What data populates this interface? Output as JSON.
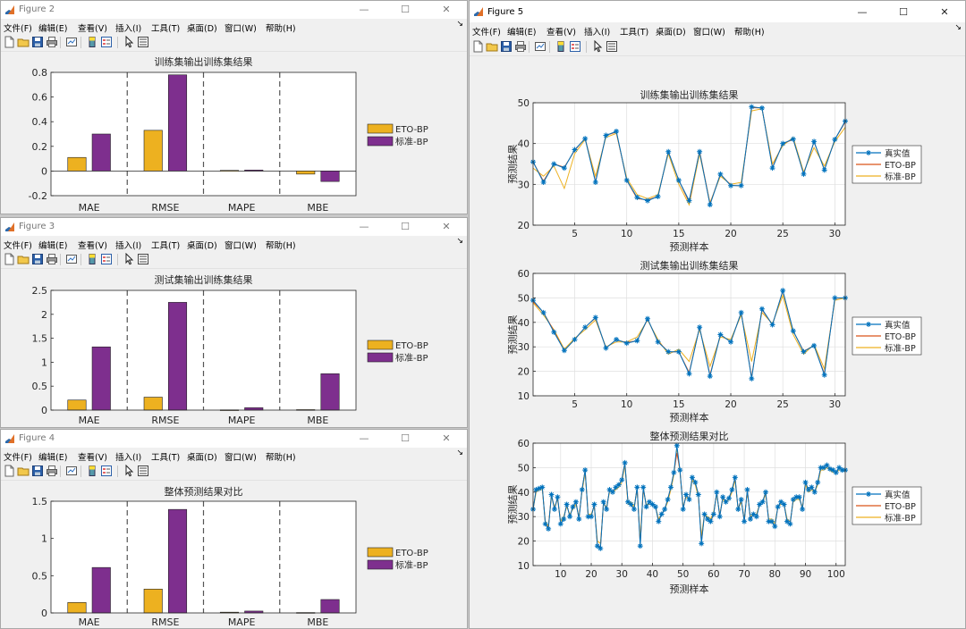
{
  "menu": [
    "文件(F)",
    "编辑(E)",
    "查看(V)",
    "插入(I)",
    "工具(T)",
    "桌面(D)",
    "窗口(W)",
    "帮助(H)"
  ],
  "window_buttons": {
    "minimize": "—",
    "maximize": "☐",
    "close": "✕"
  },
  "colors": {
    "eto": "#edb120",
    "std": "#7e2f8e",
    "true_line": "#0072bd",
    "eto_line": "#d95319",
    "std_line": "#edb120"
  },
  "figures": [
    {
      "title": "Figure 2"
    },
    {
      "title": "Figure 3"
    },
    {
      "title": "Figure 4"
    },
    {
      "title": "Figure 5"
    }
  ],
  "chart_data": [
    {
      "type": "bar",
      "title": "训练集输出训练集结果",
      "categories": [
        "MAE",
        "RMSE",
        "MAPE",
        "MBE"
      ],
      "ylim": [
        -0.2,
        0.8
      ],
      "yticks": [
        "-0.2",
        "0",
        "0.2",
        "0.4",
        "0.6",
        "0.8"
      ],
      "series": [
        {
          "name": "ETO-BP",
          "values": [
            0.11,
            0.33,
            0.005,
            -0.025
          ]
        },
        {
          "name": "标准-BP",
          "values": [
            0.3,
            0.78,
            0.008,
            -0.085
          ]
        }
      ]
    },
    {
      "type": "bar",
      "title": "测试集输出训练集结果",
      "categories": [
        "MAE",
        "RMSE",
        "MAPE",
        "MBE"
      ],
      "ylim": [
        0,
        2.5
      ],
      "yticks": [
        "0",
        "0.5",
        "1",
        "1.5",
        "2",
        "2.5"
      ],
      "series": [
        {
          "name": "ETO-BP",
          "values": [
            0.21,
            0.27,
            0.005,
            0.01
          ]
        },
        {
          "name": "标准-BP",
          "values": [
            1.32,
            2.25,
            0.05,
            0.76
          ]
        }
      ]
    },
    {
      "type": "bar",
      "title": "整体预测结果对比",
      "categories": [
        "MAE",
        "RMSE",
        "MAPE",
        "MBE"
      ],
      "ylim": [
        0,
        1.5
      ],
      "yticks": [
        "0",
        "0.5",
        "1",
        "1.5"
      ],
      "series": [
        {
          "name": "ETO-BP",
          "values": [
            0.14,
            0.32,
            0.01,
            0.005
          ]
        },
        {
          "name": "标准-BP",
          "values": [
            0.61,
            1.39,
            0.025,
            0.18
          ]
        }
      ]
    },
    {
      "type": "line",
      "title": "训练集输出训练集结果",
      "xlabel": "预测样本",
      "ylabel": "预测结果",
      "xlim": [
        1,
        31
      ],
      "ylim": [
        20,
        50
      ],
      "xticks": [
        5,
        10,
        15,
        20,
        25,
        30
      ],
      "yticks": [
        20,
        30,
        40,
        50
      ],
      "series": [
        {
          "name": "真实值",
          "values": [
            35.5,
            30.5,
            35,
            34,
            38.5,
            41.2,
            30.5,
            42,
            43,
            31,
            26.8,
            26,
            27,
            38,
            31,
            26,
            38,
            25,
            32.5,
            29.7,
            29.7,
            49,
            48.7,
            34,
            40,
            41.1,
            32.5,
            40.5,
            33.5,
            41,
            45.5
          ]
        },
        {
          "name": "ETO-BP",
          "values": [
            35.5,
            30.8,
            35,
            34.2,
            38.3,
            41.3,
            30.7,
            42,
            42.8,
            31,
            26.5,
            26.2,
            27,
            38,
            31,
            25.6,
            38.2,
            25.2,
            32.5,
            29.8,
            29.6,
            48.8,
            48.7,
            34.2,
            40,
            41,
            32.6,
            40.4,
            33.6,
            41,
            45.3
          ]
        },
        {
          "name": "标准-BP",
          "values": [
            34,
            32,
            34.5,
            29,
            37.5,
            41,
            32,
            41.5,
            42.5,
            31.5,
            27.5,
            26.5,
            27.5,
            37.5,
            30,
            25,
            37.5,
            25.5,
            32,
            30,
            30.5,
            48,
            48.5,
            35,
            39.5,
            41.5,
            33,
            39,
            34.5,
            40.5,
            44
          ]
        }
      ]
    },
    {
      "type": "line",
      "title": "测试集输出训练集结果",
      "xlabel": "预测样本",
      "ylabel": "预测结果",
      "xlim": [
        1,
        31
      ],
      "ylim": [
        10,
        60
      ],
      "xticks": [
        5,
        10,
        15,
        20,
        25,
        30
      ],
      "yticks": [
        10,
        20,
        30,
        40,
        50,
        60
      ],
      "series": [
        {
          "name": "真实值",
          "values": [
            49,
            44,
            36,
            28.5,
            33,
            38,
            42,
            29.5,
            33,
            31.5,
            32.5,
            41.5,
            32,
            28,
            28,
            19,
            38,
            18,
            35,
            32,
            44,
            17,
            45.5,
            39,
            53,
            36.5,
            28,
            30.5,
            18.5,
            50,
            50
          ]
        },
        {
          "name": "ETO-BP",
          "values": [
            48.5,
            44,
            36.5,
            28.5,
            33,
            38,
            41.8,
            29.6,
            32.8,
            31.8,
            32.5,
            41.3,
            32.2,
            28,
            28,
            19.5,
            38,
            18.5,
            35,
            32,
            44,
            17.5,
            45.2,
            39,
            52.8,
            36.5,
            28.2,
            30.5,
            19,
            49.8,
            50
          ]
        },
        {
          "name": "标准-BP",
          "values": [
            48,
            43,
            37,
            29,
            33.5,
            37,
            41,
            30,
            32,
            32,
            34,
            41,
            33,
            27,
            29,
            24,
            37,
            22,
            34,
            33,
            43,
            24,
            44,
            39.5,
            51,
            35,
            27,
            31,
            21,
            49,
            50
          ]
        }
      ]
    },
    {
      "type": "line",
      "title": "整体预测结果对比",
      "xlabel": "预测样本",
      "ylabel": "预测结果",
      "xlim": [
        1,
        103
      ],
      "ylim": [
        10,
        60
      ],
      "xticks": [
        10,
        20,
        30,
        40,
        50,
        60,
        70,
        80,
        90,
        100
      ],
      "yticks": [
        10,
        20,
        30,
        40,
        50,
        60
      ],
      "series": [
        {
          "name": "真实值",
          "values": [
            33,
            41,
            41.5,
            42,
            27,
            25,
            39,
            33,
            38,
            27,
            29,
            35,
            30,
            34,
            36,
            29,
            41,
            49,
            30,
            30,
            35,
            18,
            17,
            36,
            33,
            41,
            40,
            42,
            43,
            45,
            52,
            36,
            35,
            33,
            42,
            18,
            42,
            34,
            36,
            35,
            34,
            28,
            31,
            33,
            37,
            42,
            48,
            59,
            49,
            33,
            39,
            37,
            46,
            44,
            39,
            19,
            31,
            29,
            28,
            31,
            40,
            30,
            38,
            36,
            37.5,
            41,
            46,
            33,
            37,
            28,
            41,
            29,
            31,
            30,
            35,
            36,
            40,
            28,
            28,
            26,
            34,
            36,
            35,
            28,
            27,
            37,
            38,
            38,
            33,
            44,
            41,
            42,
            40,
            44,
            50,
            50,
            51,
            49.5,
            49,
            48,
            50,
            49,
            49
          ]
        },
        {
          "name": "ETO-BP",
          "values": [
            33,
            41,
            41.5,
            42,
            27,
            25.5,
            39,
            33,
            38,
            27,
            29,
            35,
            30,
            34,
            36,
            29,
            41,
            49,
            30,
            30,
            35,
            18.5,
            17.5,
            36,
            33,
            41,
            40,
            42,
            43,
            45,
            52,
            36,
            35,
            33,
            42,
            18.5,
            42,
            34,
            36,
            35,
            34,
            28,
            31,
            33,
            37,
            42,
            48,
            56,
            49,
            33,
            39,
            37,
            46,
            44,
            39,
            19.5,
            31,
            29,
            28,
            31,
            40,
            30,
            38,
            36,
            37.5,
            41,
            46,
            33,
            37,
            28,
            41,
            29,
            31,
            30,
            35,
            36,
            40,
            28,
            28,
            26,
            34,
            36,
            35,
            28,
            27,
            37,
            38,
            38,
            33,
            44,
            41,
            42,
            40,
            44,
            50,
            50,
            51,
            49.5,
            49,
            48,
            50,
            49,
            49
          ]
        },
        {
          "name": "标准-BP",
          "values": [
            33,
            40,
            41,
            41,
            28,
            26,
            38,
            34,
            37,
            28,
            30,
            34,
            31,
            33,
            35,
            30,
            40,
            48,
            31,
            31,
            34,
            20,
            19,
            35,
            34,
            40,
            40,
            41,
            42,
            44,
            51,
            35,
            36,
            34,
            41,
            21,
            41,
            35,
            35,
            35,
            34,
            29,
            31,
            33,
            36,
            41,
            47,
            58,
            48,
            34,
            38,
            37,
            45,
            43,
            38,
            22,
            31,
            30,
            29,
            32,
            39,
            31,
            37,
            36,
            37,
            40,
            45,
            33,
            36,
            29,
            40,
            30,
            31,
            31,
            35,
            36,
            39,
            29,
            29,
            27,
            34,
            35,
            35,
            29,
            28,
            36,
            37,
            37,
            34,
            43,
            40,
            41,
            40,
            43,
            49,
            49,
            50,
            49,
            48,
            48,
            49,
            49,
            48.5
          ]
        }
      ]
    }
  ]
}
